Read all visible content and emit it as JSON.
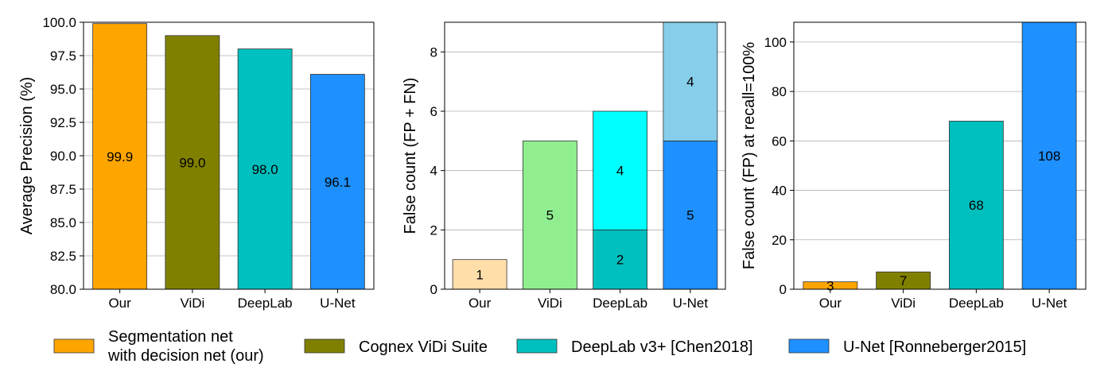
{
  "chart_data": [
    {
      "type": "bar",
      "categories": [
        "Our",
        "ViDi",
        "DeepLab",
        "U-Net"
      ],
      "values": [
        99.9,
        99.0,
        98.0,
        96.1
      ],
      "data_labels": [
        "99.9",
        "99.0",
        "98.0",
        "96.1"
      ],
      "colors": [
        "#ffa500",
        "#808000",
        "#00bfbf",
        "#1e90ff"
      ],
      "ylabel": "Average Precision (%)",
      "ylim": [
        80.0,
        100.0
      ],
      "yticks": [
        "80.0",
        "82.5",
        "85.0",
        "87.5",
        "90.0",
        "92.5",
        "95.0",
        "97.5",
        "100.0"
      ],
      "ytick_values": [
        80.0,
        82.5,
        85.0,
        87.5,
        90.0,
        92.5,
        95.0,
        97.5,
        100.0
      ],
      "grid": "horizontal"
    },
    {
      "type": "bar",
      "stacked": true,
      "categories": [
        "Our",
        "ViDi",
        "DeepLab",
        "U-Net"
      ],
      "series": [
        {
          "values": [
            1,
            5,
            2,
            5
          ],
          "labels": [
            "1",
            "5",
            "2",
            "5"
          ],
          "colors": [
            "#ffdeaa",
            "#90ee90",
            "#00bfbf",
            "#1e90ff"
          ]
        },
        {
          "values": [
            0,
            0,
            4,
            4
          ],
          "labels": [
            "",
            "",
            "4",
            "4"
          ],
          "colors": [
            "#ffdeaa",
            "#90ee90",
            "#00ffff",
            "#87ceeb"
          ]
        }
      ],
      "ylabel": "False count (FP + FN)",
      "ylim": [
        0,
        9
      ],
      "yticks": [
        "0",
        "2",
        "4",
        "6",
        "8"
      ],
      "ytick_values": [
        0,
        2,
        4,
        6,
        8
      ],
      "grid": "horizontal"
    },
    {
      "type": "bar",
      "categories": [
        "Our",
        "ViDi",
        "DeepLab",
        "U-Net"
      ],
      "values": [
        3,
        7,
        68,
        108
      ],
      "data_labels": [
        "3",
        "7",
        "68",
        "108"
      ],
      "colors": [
        "#ffa500",
        "#808000",
        "#00bfbf",
        "#1e90ff"
      ],
      "ylabel": "False count (FP) at recall=100%",
      "ylim": [
        0,
        108
      ],
      "yticks": [
        "0",
        "20",
        "40",
        "60",
        "80",
        "100"
      ],
      "ytick_values": [
        0,
        20,
        40,
        60,
        80,
        100
      ],
      "grid": "horizontal"
    }
  ],
  "legend": {
    "placement": "bottom",
    "items": [
      {
        "lines": [
          "Segmentation net",
          "with decision net (our)"
        ],
        "color": "#ffa500"
      },
      {
        "lines": [
          "Cognex ViDi Suite"
        ],
        "color": "#808000"
      },
      {
        "lines": [
          "DeepLab v3+ [Chen2018]"
        ],
        "color": "#00bfbf"
      },
      {
        "lines": [
          "U-Net [Ronneberger2015]"
        ],
        "color": "#1e90ff"
      }
    ]
  }
}
